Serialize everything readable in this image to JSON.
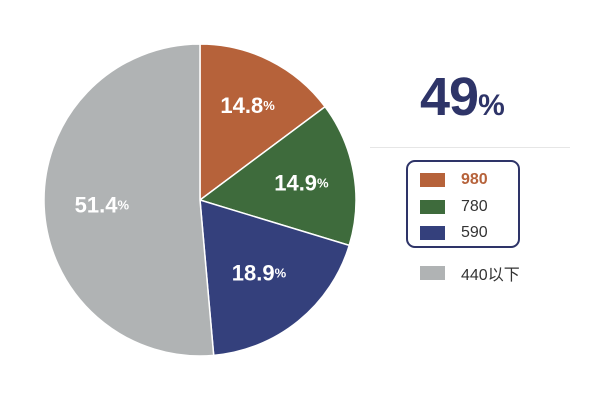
{
  "chart_data": {
    "type": "pie",
    "start_angle_deg": 0,
    "direction": "clockwise",
    "slices": [
      {
        "label": "980",
        "value": 14.8,
        "value_label": "14.8",
        "unit": "%",
        "color": "#b6623a"
      },
      {
        "label": "780",
        "value": 14.9,
        "value_label": "14.9",
        "unit": "%",
        "color": "#3e6b3c"
      },
      {
        "label": "590",
        "value": 18.9,
        "value_label": "18.9",
        "unit": "%",
        "color": "#34407c"
      },
      {
        "label": "440以下",
        "value": 51.4,
        "value_label": "51.4",
        "unit": "%",
        "color": "#b0b3b4"
      }
    ],
    "callout": {
      "value": "49",
      "unit": "%",
      "color": "#2e3468"
    },
    "legend": {
      "boxed_entries": [
        "980",
        "780",
        "590"
      ],
      "highlight_entry": "980",
      "highlight_color": "#b6623a",
      "border_color": "#2e3468"
    }
  }
}
